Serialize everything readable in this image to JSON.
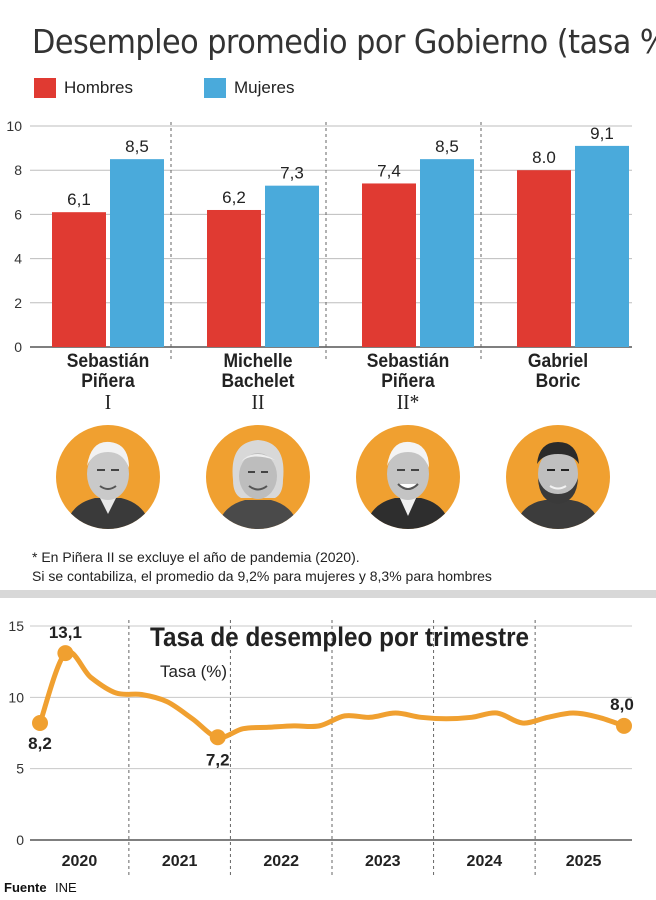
{
  "top_chart": {
    "title": "Desempleo promedio por Gobierno (tasa %)",
    "legend": [
      {
        "label": "Hombres",
        "color": "#e03a32"
      },
      {
        "label": "Mujeres",
        "color": "#4aaadb"
      }
    ],
    "governments": [
      {
        "line1": "Sebastián",
        "line2": "Piñera",
        "line3": "I",
        "portrait": "sebastian-pinera-portrait-icon"
      },
      {
        "line1": "Michelle",
        "line2": "Bachelet",
        "line3": "II",
        "portrait": "michelle-bachelet-portrait-icon"
      },
      {
        "line1": "Sebastián",
        "line2": "Piñera",
        "line3": "II*",
        "portrait": "sebastian-pinera-portrait-icon"
      },
      {
        "line1": "Gabriel",
        "line2": "Boric",
        "line3": "",
        "portrait": "gabriel-boric-portrait-icon"
      }
    ],
    "footnote": [
      "* En Piñera II se excluye el año de pandemia (2020).",
      "Si se contabiliza, el promedio da 9,2% para mujeres y 8,3% para hombres"
    ]
  },
  "bottom_chart": {
    "title": "Tasa de desempleo por trimestre",
    "ylabel": "Tasa (%)"
  },
  "source": {
    "label": "Fuente",
    "value": "INE"
  },
  "chart_data": [
    {
      "type": "bar",
      "title": "Desempleo promedio por Gobierno (tasa %)",
      "categories": [
        "Sebastián Piñera I",
        "Michelle Bachelet II",
        "Sebastián Piñera II*",
        "Gabriel Boric"
      ],
      "series": [
        {
          "name": "Hombres",
          "values": [
            6.1,
            6.2,
            7.4,
            8.0
          ],
          "labels": [
            "6,1",
            "6,2",
            "7,4",
            "8.0"
          ],
          "color": "#e03a32"
        },
        {
          "name": "Mujeres",
          "values": [
            8.5,
            7.3,
            8.5,
            9.1
          ],
          "labels": [
            "8,5",
            "7,3",
            "8,5",
            "9,1"
          ],
          "color": "#4aaadb"
        }
      ],
      "ylim": [
        0,
        10
      ],
      "yticks": [
        "0",
        "2",
        "4",
        "6",
        "8",
        "10"
      ],
      "grid": true,
      "legend": "top-left"
    },
    {
      "type": "line",
      "title": "Tasa de desempleo por trimestre",
      "ylabel": "Tasa (%)",
      "x_groups": [
        "2020",
        "2021",
        "2022",
        "2023",
        "2024",
        "2025"
      ],
      "x": [
        2020.0,
        2020.25,
        2020.5,
        2020.75,
        2021.0,
        2021.25,
        2021.5,
        2021.75,
        2022.0,
        2022.25,
        2022.5,
        2022.75,
        2023.0,
        2023.25,
        2023.5,
        2023.75,
        2024.0,
        2024.25,
        2024.5,
        2024.75,
        2025.0,
        2025.25,
        2025.5,
        2025.75
      ],
      "values": [
        8.2,
        13.1,
        11.4,
        10.3,
        10.2,
        9.7,
        8.5,
        7.2,
        7.8,
        7.9,
        8.0,
        8.0,
        8.7,
        8.6,
        8.9,
        8.6,
        8.5,
        8.6,
        8.9,
        8.2,
        8.6,
        8.9,
        8.6,
        8.0
      ],
      "point_labels": [
        {
          "index": 0,
          "text": "8,2"
        },
        {
          "index": 1,
          "text": "13,1"
        },
        {
          "index": 7,
          "text": "7,2"
        },
        {
          "index": 23,
          "text": "8,0"
        }
      ],
      "ylim": [
        0,
        15
      ],
      "yticks": [
        "0",
        "5",
        "10",
        "15"
      ],
      "color": "#f0a030"
    }
  ]
}
